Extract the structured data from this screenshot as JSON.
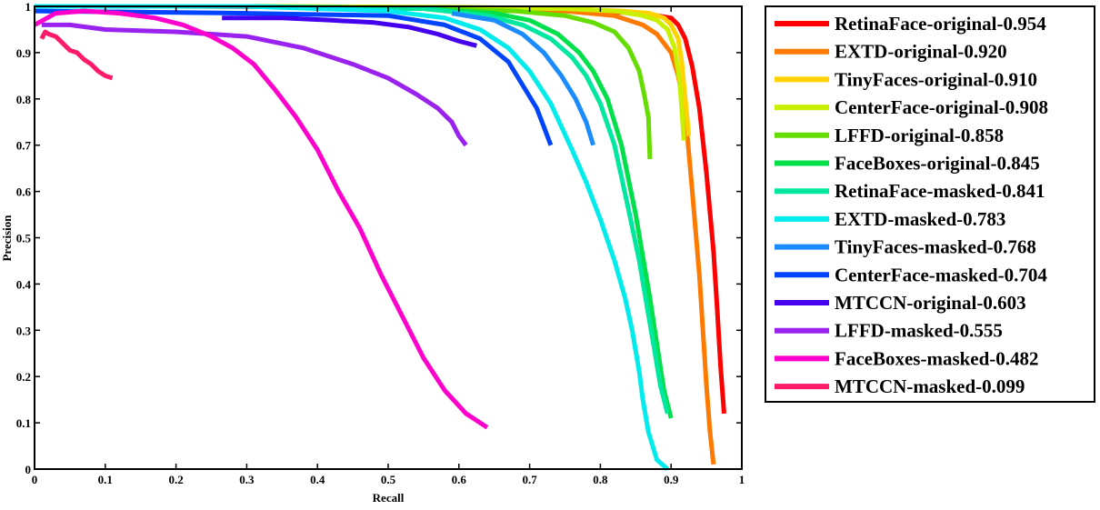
{
  "chart_data": {
    "type": "line",
    "title": "",
    "xlabel": "Recall",
    "ylabel": "Precision",
    "xlim": [
      0,
      1
    ],
    "ylim": [
      0,
      1
    ],
    "xticks": [
      "0",
      "0.1",
      "0.2",
      "0.3",
      "0.4",
      "0.5",
      "0.6",
      "0.7",
      "0.8",
      "0.9",
      "1"
    ],
    "yticks": [
      "0",
      "0.1",
      "0.2",
      "0.3",
      "0.4",
      "0.5",
      "0.6",
      "0.7",
      "0.8",
      "0.9",
      "1"
    ],
    "grid": false,
    "legend_position": "right",
    "series": [
      {
        "name": "RetinaFace-original-0.954",
        "color": "#ff0000",
        "x": [
          0.0,
          0.2,
          0.5,
          0.7,
          0.8,
          0.85,
          0.88,
          0.9,
          0.91,
          0.92,
          0.93,
          0.94,
          0.95,
          0.96,
          0.965,
          0.97,
          0.975
        ],
        "y": [
          1.0,
          1.0,
          0.998,
          0.995,
          0.99,
          0.985,
          0.98,
          0.975,
          0.96,
          0.93,
          0.87,
          0.78,
          0.64,
          0.47,
          0.35,
          0.22,
          0.12
        ]
      },
      {
        "name": "EXTD-original-0.920",
        "color": "#ff7a00",
        "x": [
          0.0,
          0.3,
          0.6,
          0.75,
          0.82,
          0.86,
          0.88,
          0.9,
          0.91,
          0.92,
          0.93,
          0.94,
          0.945,
          0.95,
          0.955,
          0.96
        ],
        "y": [
          1.0,
          1.0,
          0.995,
          0.99,
          0.98,
          0.96,
          0.94,
          0.9,
          0.85,
          0.77,
          0.6,
          0.42,
          0.3,
          0.18,
          0.08,
          0.01
        ]
      },
      {
        "name": "TinyFaces-original-0.910",
        "color": "#ffd200",
        "x": [
          0.0,
          0.3,
          0.6,
          0.75,
          0.83,
          0.87,
          0.89,
          0.9,
          0.91,
          0.915,
          0.92,
          0.925
        ],
        "y": [
          1.0,
          1.0,
          0.998,
          0.995,
          0.99,
          0.985,
          0.975,
          0.96,
          0.93,
          0.88,
          0.8,
          0.72
        ]
      },
      {
        "name": "CenterFace-original-0.908",
        "color": "#c8f000",
        "x": [
          0.0,
          0.3,
          0.6,
          0.75,
          0.82,
          0.86,
          0.88,
          0.895,
          0.905,
          0.912,
          0.916,
          0.918
        ],
        "y": [
          1.0,
          1.0,
          0.998,
          0.995,
          0.99,
          0.98,
          0.97,
          0.95,
          0.91,
          0.84,
          0.76,
          0.71
        ]
      },
      {
        "name": "LFFD-original-0.858",
        "color": "#66dd00",
        "x": [
          0.0,
          0.3,
          0.55,
          0.68,
          0.75,
          0.79,
          0.82,
          0.84,
          0.855,
          0.862,
          0.868,
          0.87
        ],
        "y": [
          1.0,
          1.0,
          0.995,
          0.99,
          0.98,
          0.965,
          0.945,
          0.91,
          0.86,
          0.81,
          0.76,
          0.67
        ]
      },
      {
        "name": "FaceBoxes-original-0.845",
        "color": "#00e04a",
        "x": [
          0.0,
          0.3,
          0.55,
          0.65,
          0.7,
          0.74,
          0.77,
          0.79,
          0.81,
          0.83,
          0.85,
          0.86,
          0.87,
          0.88,
          0.89,
          0.9
        ],
        "y": [
          1.0,
          1.0,
          0.995,
          0.985,
          0.97,
          0.94,
          0.9,
          0.86,
          0.8,
          0.7,
          0.55,
          0.46,
          0.37,
          0.27,
          0.17,
          0.11
        ]
      },
      {
        "name": "RetinaFace-masked-0.841",
        "color": "#00e8a0",
        "x": [
          0.0,
          0.3,
          0.55,
          0.64,
          0.69,
          0.73,
          0.76,
          0.78,
          0.8,
          0.82,
          0.84,
          0.855,
          0.865,
          0.875,
          0.885,
          0.895
        ],
        "y": [
          1.0,
          1.0,
          0.995,
          0.98,
          0.96,
          0.93,
          0.89,
          0.85,
          0.79,
          0.7,
          0.56,
          0.45,
          0.36,
          0.27,
          0.18,
          0.12
        ]
      },
      {
        "name": "EXTD-masked-0.783",
        "color": "#00ecec",
        "x": [
          0.0,
          0.3,
          0.5,
          0.58,
          0.63,
          0.67,
          0.7,
          0.73,
          0.76,
          0.78,
          0.8,
          0.82,
          0.835,
          0.845,
          0.855,
          0.86,
          0.868,
          0.88,
          0.895
        ],
        "y": [
          1.0,
          1.0,
          0.99,
          0.975,
          0.95,
          0.91,
          0.86,
          0.79,
          0.69,
          0.62,
          0.54,
          0.45,
          0.37,
          0.3,
          0.21,
          0.15,
          0.08,
          0.02,
          0.0
        ]
      },
      {
        "name": "TinyFaces-masked-0.768",
        "color": "#1a8cff",
        "x": [
          0.59,
          0.65,
          0.69,
          0.72,
          0.745,
          0.765,
          0.78,
          0.79
        ],
        "y": [
          0.985,
          0.97,
          0.94,
          0.9,
          0.85,
          0.8,
          0.75,
          0.7
        ]
      },
      {
        "name": "CenterFace-masked-0.704",
        "color": "#0044ff",
        "x": [
          0.0,
          0.3,
          0.5,
          0.58,
          0.63,
          0.67,
          0.69,
          0.71,
          0.72,
          0.73
        ],
        "y": [
          0.99,
          0.985,
          0.98,
          0.96,
          0.93,
          0.88,
          0.83,
          0.78,
          0.74,
          0.7
        ]
      },
      {
        "name": "MTCCN-original-0.603",
        "color": "#4400ee",
        "x": [
          0.265,
          0.35,
          0.42,
          0.48,
          0.53,
          0.57,
          0.6,
          0.625
        ],
        "y": [
          0.975,
          0.975,
          0.97,
          0.965,
          0.955,
          0.94,
          0.925,
          0.915
        ]
      },
      {
        "name": "LFFD-masked-0.555",
        "color": "#9a22ee",
        "x": [
          0.01,
          0.05,
          0.1,
          0.2,
          0.3,
          0.38,
          0.45,
          0.5,
          0.54,
          0.57,
          0.59,
          0.6,
          0.61
        ],
        "y": [
          0.96,
          0.96,
          0.95,
          0.945,
          0.935,
          0.91,
          0.875,
          0.845,
          0.81,
          0.78,
          0.75,
          0.72,
          0.7
        ]
      },
      {
        "name": "FaceBoxes-masked-0.482",
        "color": "#ff00cc",
        "x": [
          0.0,
          0.03,
          0.07,
          0.12,
          0.17,
          0.21,
          0.25,
          0.28,
          0.31,
          0.34,
          0.37,
          0.4,
          0.43,
          0.46,
          0.49,
          0.52,
          0.55,
          0.58,
          0.61,
          0.64
        ],
        "y": [
          0.96,
          0.985,
          0.99,
          0.985,
          0.975,
          0.96,
          0.935,
          0.91,
          0.875,
          0.82,
          0.76,
          0.69,
          0.6,
          0.52,
          0.42,
          0.33,
          0.24,
          0.17,
          0.12,
          0.09
        ]
      },
      {
        "name": "MTCCN-masked-0.099",
        "color": "#ff1a6a",
        "x": [
          0.01,
          0.015,
          0.02,
          0.03,
          0.04,
          0.05,
          0.06,
          0.07,
          0.08,
          0.09,
          0.1,
          0.11
        ],
        "y": [
          0.93,
          0.945,
          0.94,
          0.935,
          0.92,
          0.905,
          0.9,
          0.885,
          0.875,
          0.86,
          0.85,
          0.845
        ]
      }
    ]
  }
}
